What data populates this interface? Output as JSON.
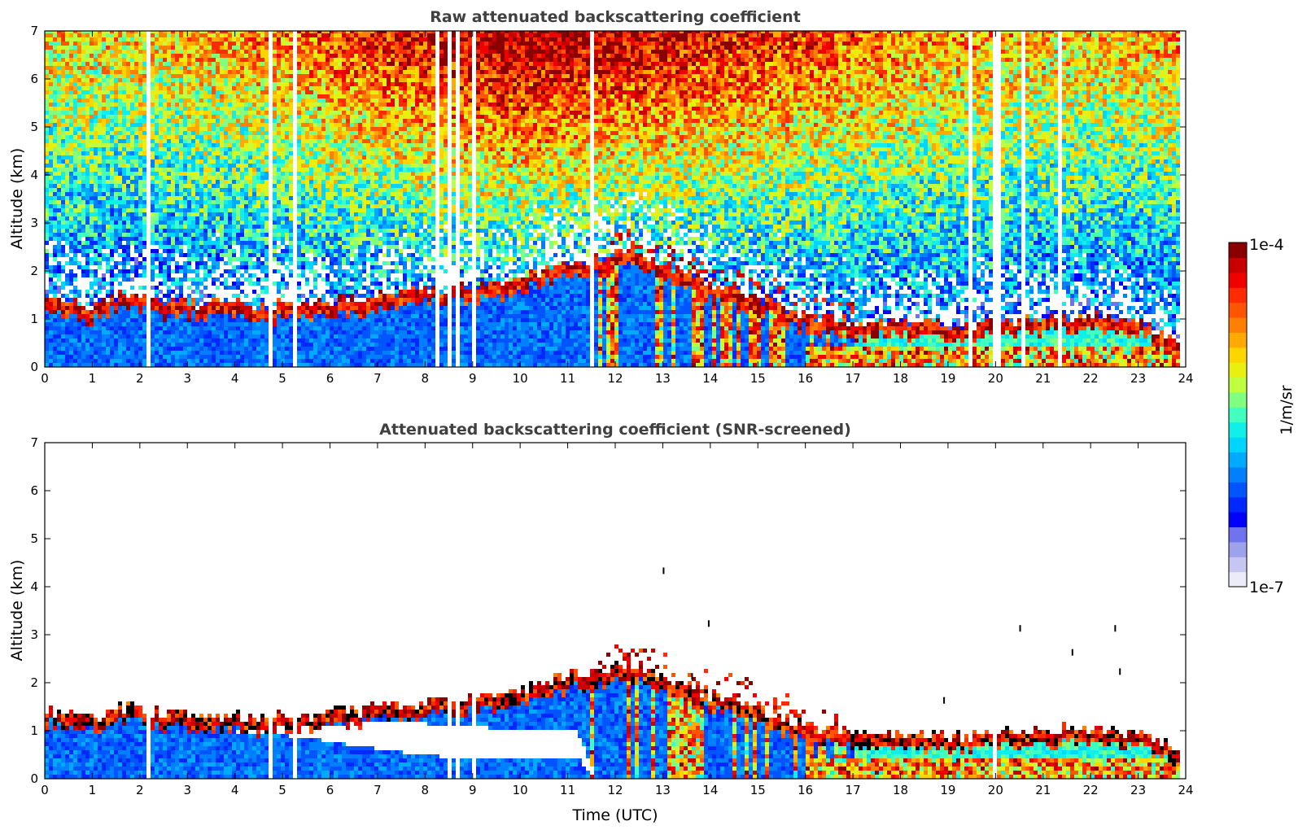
{
  "chart_data": [
    {
      "type": "heatmap",
      "title": "Raw attenuated backscattering coefficient",
      "xlabel": "",
      "ylabel": "Altitude (km)",
      "xlim": [
        0,
        24
      ],
      "ylim": [
        0,
        7
      ],
      "x_ticks": [
        "0",
        "1",
        "2",
        "3",
        "4",
        "5",
        "6",
        "7",
        "8",
        "9",
        "10",
        "11",
        "12",
        "13",
        "14",
        "15",
        "16",
        "17",
        "18",
        "19",
        "20",
        "21",
        "22",
        "23",
        "24"
      ],
      "y_ticks": [
        "0",
        "1",
        "2",
        "3",
        "4",
        "5",
        "6",
        "7"
      ],
      "grid": false,
      "screened": false,
      "data_end_hour": 23.8,
      "gaps_hours": [
        2.2,
        4.75,
        5.3,
        8.25,
        8.55,
        8.65,
        9.0,
        11.5,
        19.45,
        19.95,
        20.05,
        20.55,
        21.35
      ],
      "layer_top_km": [
        [
          0,
          1.3
        ],
        [
          0.5,
          1.2
        ],
        [
          1,
          1.1
        ],
        [
          1.5,
          1.35
        ],
        [
          2,
          1.3
        ],
        [
          2.5,
          1.2
        ],
        [
          3,
          1.2
        ],
        [
          3.5,
          1.15
        ],
        [
          4,
          1.15
        ],
        [
          4.5,
          1.15
        ],
        [
          5,
          1.15
        ],
        [
          5.5,
          1.15
        ],
        [
          6,
          1.25
        ],
        [
          6.5,
          1.25
        ],
        [
          7,
          1.35
        ],
        [
          7.5,
          1.4
        ],
        [
          8,
          1.45
        ],
        [
          8.5,
          1.5
        ],
        [
          9,
          1.55
        ],
        [
          9.5,
          1.6
        ],
        [
          10,
          1.7
        ],
        [
          10.5,
          1.85
        ],
        [
          11,
          2.0
        ],
        [
          11.5,
          2.1
        ],
        [
          12,
          2.2
        ],
        [
          12.5,
          2.2
        ],
        [
          13,
          2.0
        ],
        [
          13.5,
          1.8
        ],
        [
          14,
          1.6
        ],
        [
          14.5,
          1.5
        ],
        [
          15,
          1.3
        ],
        [
          15.5,
          1.1
        ],
        [
          16,
          0.95
        ],
        [
          16.5,
          0.85
        ],
        [
          17,
          0.8
        ],
        [
          17.5,
          0.8
        ],
        [
          18,
          0.8
        ],
        [
          18.5,
          0.75
        ],
        [
          19,
          0.75
        ],
        [
          19.5,
          0.75
        ],
        [
          20,
          0.8
        ],
        [
          20.5,
          0.85
        ],
        [
          21,
          0.85
        ],
        [
          21.5,
          0.9
        ],
        [
          22,
          0.9
        ],
        [
          22.5,
          0.85
        ],
        [
          23,
          0.8
        ],
        [
          23.5,
          0.6
        ],
        [
          23.8,
          0.5
        ]
      ]
    },
    {
      "type": "heatmap",
      "title": "Attenuated backscattering coefficient (SNR-screened)",
      "xlabel": "Time (UTC)",
      "ylabel": "Altitude (km)",
      "xlim": [
        0,
        24
      ],
      "ylim": [
        0,
        7
      ],
      "x_ticks": [
        "0",
        "1",
        "2",
        "3",
        "4",
        "5",
        "6",
        "7",
        "8",
        "9",
        "10",
        "11",
        "12",
        "13",
        "14",
        "15",
        "16",
        "17",
        "18",
        "19",
        "20",
        "21",
        "22",
        "23",
        "24"
      ],
      "y_ticks": [
        "0",
        "1",
        "2",
        "3",
        "4",
        "5",
        "6",
        "7"
      ],
      "grid": false,
      "screened": true,
      "data_end_hour": 23.8,
      "gaps_hours": [
        2.2,
        4.75,
        5.3,
        8.55,
        8.65,
        9.0,
        19.95
      ],
      "clear_gap_km": [
        [
          0,
          0,
          0
        ],
        [
          3.5,
          1.0,
          1.0
        ],
        [
          4.5,
          0.95,
          1.05
        ],
        [
          5.5,
          0.85,
          1.1
        ],
        [
          6.5,
          0.7,
          1.15
        ],
        [
          7.5,
          0.55,
          1.2
        ],
        [
          8.5,
          0.45,
          1.1
        ],
        [
          9.5,
          0.4,
          1.05
        ],
        [
          10.5,
          0.4,
          1.0
        ],
        [
          11.2,
          0.45,
          1.0
        ],
        [
          11.6,
          0,
          0
        ]
      ],
      "isolated_points": [
        [
          13.0,
          4.4
        ],
        [
          13.95,
          3.3
        ],
        [
          20.5,
          3.2
        ],
        [
          22.5,
          3.2
        ],
        [
          22.6,
          2.3
        ],
        [
          18.9,
          1.7
        ],
        [
          21.6,
          2.7
        ],
        [
          13.6,
          2.2
        ]
      ],
      "layer_top_km": [
        [
          0,
          1.3
        ],
        [
          0.5,
          1.2
        ],
        [
          1,
          1.1
        ],
        [
          1.5,
          1.35
        ],
        [
          2,
          1.3
        ],
        [
          2.5,
          1.2
        ],
        [
          3,
          1.2
        ],
        [
          3.5,
          1.15
        ],
        [
          4,
          1.15
        ],
        [
          4.5,
          1.15
        ],
        [
          5,
          1.15
        ],
        [
          5.5,
          1.15
        ],
        [
          6,
          1.25
        ],
        [
          6.5,
          1.25
        ],
        [
          7,
          1.35
        ],
        [
          7.5,
          1.4
        ],
        [
          8,
          1.45
        ],
        [
          8.5,
          1.5
        ],
        [
          9,
          1.55
        ],
        [
          9.5,
          1.6
        ],
        [
          10,
          1.7
        ],
        [
          10.5,
          1.85
        ],
        [
          11,
          2.0
        ],
        [
          11.5,
          2.1
        ],
        [
          12,
          2.2
        ],
        [
          12.5,
          2.2
        ],
        [
          13,
          2.0
        ],
        [
          13.5,
          1.8
        ],
        [
          14,
          1.6
        ],
        [
          14.5,
          1.5
        ],
        [
          15,
          1.3
        ],
        [
          15.5,
          1.1
        ],
        [
          16,
          0.95
        ],
        [
          16.5,
          0.85
        ],
        [
          17,
          0.8
        ],
        [
          17.5,
          0.8
        ],
        [
          18,
          0.8
        ],
        [
          18.5,
          0.75
        ],
        [
          19,
          0.75
        ],
        [
          19.5,
          0.75
        ],
        [
          20,
          0.8
        ],
        [
          20.5,
          0.85
        ],
        [
          21,
          0.85
        ],
        [
          21.5,
          0.9
        ],
        [
          22,
          0.9
        ],
        [
          22.5,
          0.85
        ],
        [
          23,
          0.8
        ],
        [
          23.5,
          0.6
        ],
        [
          23.8,
          0.5
        ]
      ]
    }
  ],
  "colorbar": {
    "max_label": "1e-4",
    "min_label": "1e-7",
    "unit_label": "1/m/sr",
    "colors": [
      "#ececf8",
      "#c5c7f0",
      "#9ea2ea",
      "#6f74ee",
      "#0000ff",
      "#0028ff",
      "#0055ff",
      "#0080ff",
      "#00aaff",
      "#00d5ff",
      "#10f0e8",
      "#40ffbf",
      "#80ff80",
      "#bfff40",
      "#e8f010",
      "#ffd500",
      "#ffaa00",
      "#ff8000",
      "#ff5500",
      "#ff2b00",
      "#f00000",
      "#c80000",
      "#8a0000"
    ]
  }
}
